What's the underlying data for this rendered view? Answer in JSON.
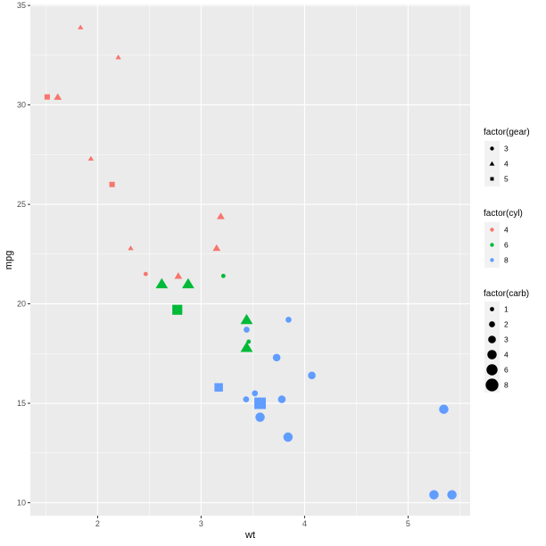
{
  "chart_data": {
    "type": "scatter",
    "title": "",
    "xlabel": "wt",
    "ylabel": "mpg",
    "xlim": [
      1.35,
      5.6
    ],
    "ylim": [
      9.35,
      35.05
    ],
    "x_ticks": [
      2,
      3,
      4,
      5
    ],
    "y_ticks": [
      10,
      15,
      20,
      25,
      30,
      35
    ],
    "grid": true,
    "legend_position": "right",
    "colors": {
      "panel": "#ebebeb",
      "grid_major": "#ffffff",
      "cyl_4": "#F8766D",
      "cyl_6": "#00BA38",
      "cyl_8": "#619CFF"
    },
    "points": [
      {
        "wt": 2.62,
        "mpg": 21.0,
        "cyl": 6,
        "gear": 4,
        "carb": 4
      },
      {
        "wt": 2.875,
        "mpg": 21.0,
        "cyl": 6,
        "gear": 4,
        "carb": 4
      },
      {
        "wt": 2.32,
        "mpg": 22.8,
        "cyl": 4,
        "gear": 4,
        "carb": 1
      },
      {
        "wt": 3.215,
        "mpg": 21.4,
        "cyl": 6,
        "gear": 3,
        "carb": 1
      },
      {
        "wt": 3.44,
        "mpg": 18.7,
        "cyl": 8,
        "gear": 3,
        "carb": 2
      },
      {
        "wt": 3.46,
        "mpg": 18.1,
        "cyl": 6,
        "gear": 3,
        "carb": 1
      },
      {
        "wt": 3.57,
        "mpg": 14.3,
        "cyl": 8,
        "gear": 3,
        "carb": 4
      },
      {
        "wt": 3.19,
        "mpg": 24.4,
        "cyl": 4,
        "gear": 4,
        "carb": 2
      },
      {
        "wt": 3.15,
        "mpg": 22.8,
        "cyl": 4,
        "gear": 4,
        "carb": 2
      },
      {
        "wt": 3.44,
        "mpg": 19.2,
        "cyl": 6,
        "gear": 4,
        "carb": 4
      },
      {
        "wt": 3.44,
        "mpg": 17.8,
        "cyl": 6,
        "gear": 4,
        "carb": 4
      },
      {
        "wt": 4.07,
        "mpg": 16.4,
        "cyl": 8,
        "gear": 3,
        "carb": 3
      },
      {
        "wt": 3.73,
        "mpg": 17.3,
        "cyl": 8,
        "gear": 3,
        "carb": 3
      },
      {
        "wt": 3.78,
        "mpg": 15.2,
        "cyl": 8,
        "gear": 3,
        "carb": 3
      },
      {
        "wt": 5.25,
        "mpg": 10.4,
        "cyl": 8,
        "gear": 3,
        "carb": 4
      },
      {
        "wt": 5.424,
        "mpg": 10.4,
        "cyl": 8,
        "gear": 3,
        "carb": 4
      },
      {
        "wt": 5.345,
        "mpg": 14.7,
        "cyl": 8,
        "gear": 3,
        "carb": 4
      },
      {
        "wt": 2.2,
        "mpg": 32.4,
        "cyl": 4,
        "gear": 4,
        "carb": 1
      },
      {
        "wt": 1.615,
        "mpg": 30.4,
        "cyl": 4,
        "gear": 4,
        "carb": 2
      },
      {
        "wt": 1.835,
        "mpg": 33.9,
        "cyl": 4,
        "gear": 4,
        "carb": 1
      },
      {
        "wt": 2.465,
        "mpg": 21.5,
        "cyl": 4,
        "gear": 3,
        "carb": 1
      },
      {
        "wt": 3.52,
        "mpg": 15.5,
        "cyl": 8,
        "gear": 3,
        "carb": 2
      },
      {
        "wt": 3.435,
        "mpg": 15.2,
        "cyl": 8,
        "gear": 3,
        "carb": 2
      },
      {
        "wt": 3.84,
        "mpg": 13.3,
        "cyl": 8,
        "gear": 3,
        "carb": 4
      },
      {
        "wt": 3.845,
        "mpg": 19.2,
        "cyl": 8,
        "gear": 3,
        "carb": 2
      },
      {
        "wt": 1.935,
        "mpg": 27.3,
        "cyl": 4,
        "gear": 4,
        "carb": 1
      },
      {
        "wt": 2.14,
        "mpg": 26.0,
        "cyl": 4,
        "gear": 5,
        "carb": 2
      },
      {
        "wt": 1.513,
        "mpg": 30.4,
        "cyl": 4,
        "gear": 5,
        "carb": 2
      },
      {
        "wt": 3.17,
        "mpg": 15.8,
        "cyl": 8,
        "gear": 5,
        "carb": 4
      },
      {
        "wt": 2.77,
        "mpg": 19.7,
        "cyl": 6,
        "gear": 5,
        "carb": 6
      },
      {
        "wt": 3.57,
        "mpg": 15.0,
        "cyl": 8,
        "gear": 5,
        "carb": 8
      },
      {
        "wt": 2.78,
        "mpg": 21.4,
        "cyl": 4,
        "gear": 4,
        "carb": 2
      }
    ],
    "legends": [
      {
        "title": "factor(gear)",
        "kind": "shape",
        "items": [
          {
            "label": "3",
            "shape": "circle"
          },
          {
            "label": "4",
            "shape": "triangle"
          },
          {
            "label": "5",
            "shape": "square"
          }
        ]
      },
      {
        "title": "factor(cyl)",
        "kind": "color",
        "items": [
          {
            "label": "4",
            "color": "#F8766D"
          },
          {
            "label": "6",
            "color": "#00BA38"
          },
          {
            "label": "8",
            "color": "#619CFF"
          }
        ]
      },
      {
        "title": "factor(carb)",
        "kind": "size",
        "items": [
          {
            "label": "1",
            "level": 1
          },
          {
            "label": "2",
            "level": 2
          },
          {
            "label": "3",
            "level": 3
          },
          {
            "label": "4",
            "level": 4
          },
          {
            "label": "6",
            "level": 6
          },
          {
            "label": "8",
            "level": 8
          }
        ]
      }
    ]
  }
}
